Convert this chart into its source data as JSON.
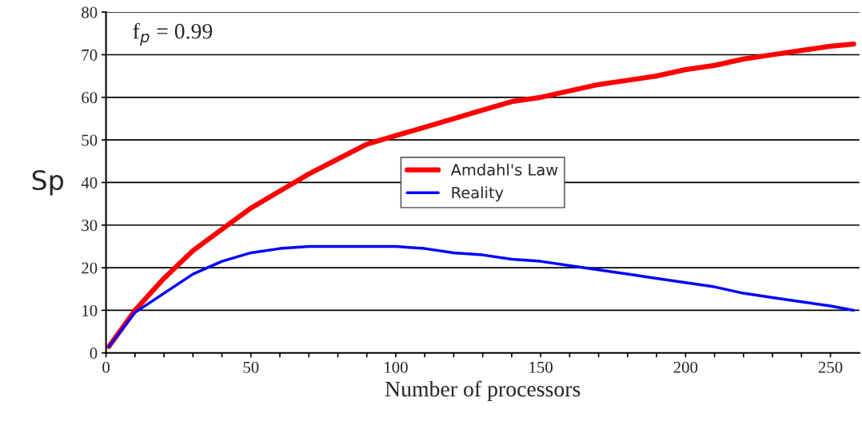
{
  "chart_data": {
    "type": "line",
    "xlabel": "Number of processors",
    "ylabel": "Sp",
    "annotations": [
      "f$_{p}$ = 0.99"
    ],
    "series": [
      {
        "name": "Amdahl's Law",
        "color": "#ff0000",
        "x": [
          1,
          10,
          20,
          30,
          40,
          50,
          60,
          70,
          80,
          90,
          100,
          110,
          120,
          130,
          140,
          150,
          160,
          170,
          180,
          190,
          200,
          210,
          220,
          230,
          240,
          250,
          258
        ],
        "values": [
          1.5,
          10,
          17.5,
          24,
          29,
          34,
          38,
          42,
          45.5,
          49,
          51,
          53,
          55,
          57,
          59,
          60,
          61.5,
          63,
          64,
          65,
          66.5,
          67.5,
          69,
          70,
          71,
          72,
          72.5
        ]
      },
      {
        "name": "Reality",
        "color": "#0000ff",
        "x": [
          1,
          10,
          20,
          30,
          40,
          50,
          60,
          70,
          80,
          90,
          100,
          110,
          120,
          130,
          140,
          150,
          160,
          170,
          180,
          190,
          200,
          210,
          220,
          230,
          240,
          250,
          258
        ],
        "values": [
          1.5,
          9.5,
          14,
          18.5,
          21.5,
          23.5,
          24.5,
          25,
          25,
          25,
          25,
          24.5,
          23.5,
          23,
          22,
          21.5,
          20.5,
          19.5,
          18.5,
          17.5,
          16.5,
          15.5,
          14,
          13,
          12,
          11,
          10
        ]
      }
    ],
    "xlim": [
      0,
      260
    ],
    "ylim": [
      0,
      80
    ],
    "xticks": [
      0,
      {
        "value": 10,
        "label": null
      },
      {
        "value": 20,
        "label": null
      },
      {
        "value": 30,
        "label": null
      },
      {
        "value": 40,
        "label": null
      },
      50,
      {
        "value": 60,
        "label": null
      },
      {
        "value": 70,
        "label": null
      },
      {
        "value": 80,
        "label": null
      },
      {
        "value": 90,
        "label": null
      },
      100,
      {
        "value": 110,
        "label": null
      },
      {
        "value": 120,
        "label": null
      },
      {
        "value": 130,
        "label": null
      },
      {
        "value": 140,
        "label": null
      },
      150,
      {
        "value": 160,
        "label": null
      },
      {
        "value": 170,
        "label": null
      },
      {
        "value": 180,
        "label": null
      },
      {
        "value": 190,
        "label": null
      },
      200,
      {
        "value": 210,
        "label": null
      },
      {
        "value": 220,
        "label": null
      },
      {
        "value": 230,
        "label": null
      },
      {
        "value": 240,
        "label": null
      },
      250
    ],
    "yticks": [
      0,
      10,
      20,
      30,
      40,
      50,
      60,
      70,
      80
    ],
    "grid": "y",
    "legend": "center",
    "marker": "none",
    "line_style": "solid"
  }
}
